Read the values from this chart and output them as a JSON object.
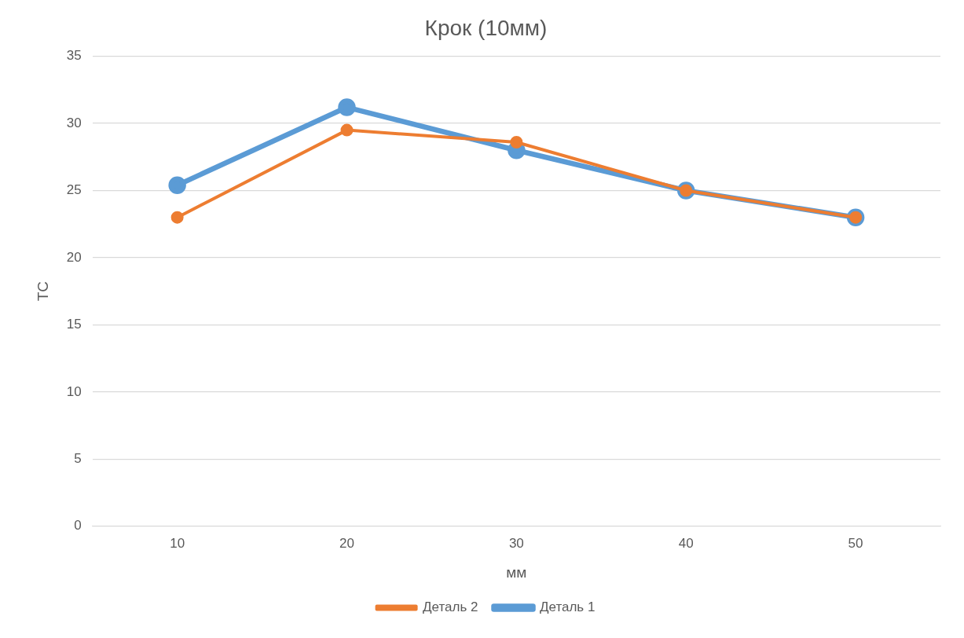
{
  "chart_data": {
    "type": "line",
    "title": "Крок (10мм)",
    "xlabel": "мм",
    "ylabel": "ТС",
    "categories": [
      "10",
      "20",
      "30",
      "40",
      "50"
    ],
    "series": [
      {
        "name": "Деталь 1",
        "color": "#5b9bd5",
        "values": [
          25.4,
          31.2,
          28.0,
          25.0,
          23.0
        ]
      },
      {
        "name": "Деталь 2",
        "color": "#ed7d31",
        "values": [
          23.0,
          29.5,
          28.6,
          25.0,
          23.0
        ]
      }
    ],
    "ylim": [
      0,
      35
    ],
    "yticks": [
      0,
      5,
      10,
      15,
      20,
      25,
      30,
      35
    ],
    "grid": "y",
    "legend": "bottom",
    "marker": "circle",
    "line_style": "solid"
  }
}
